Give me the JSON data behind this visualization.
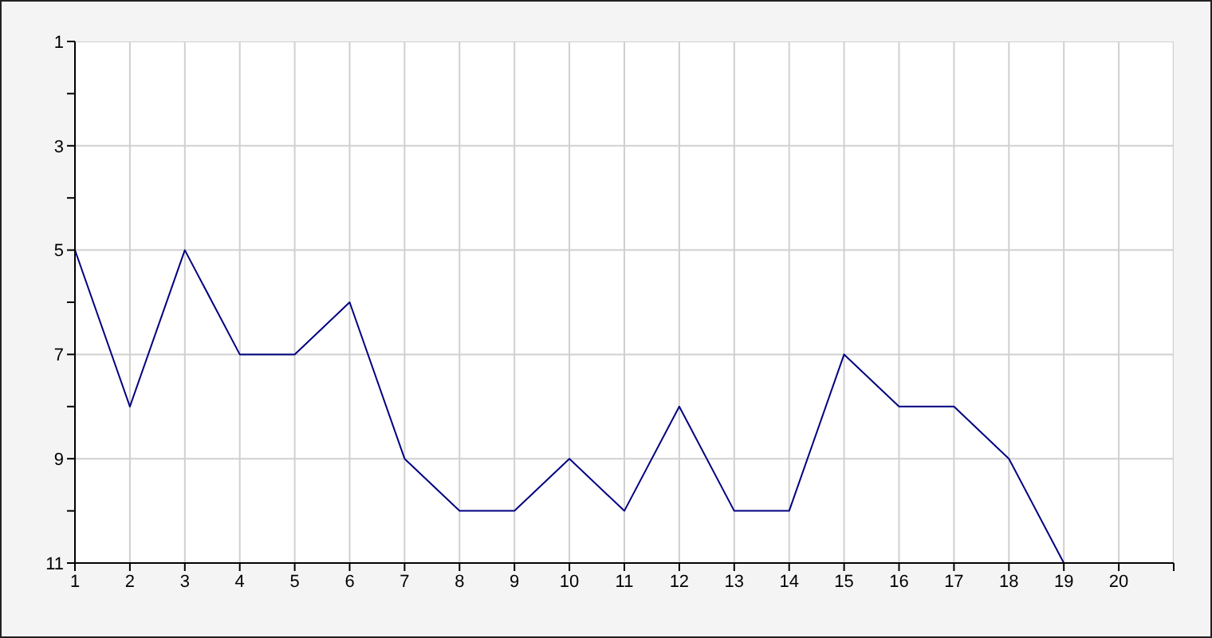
{
  "chart_data": {
    "type": "line",
    "x": [
      1,
      2,
      3,
      4,
      5,
      6,
      7,
      8,
      9,
      10,
      11,
      12,
      13,
      14,
      15,
      16,
      17,
      18,
      19,
      20
    ],
    "series": [
      {
        "color": "#000080",
        "values": [
          5,
          8,
          5,
          7,
          7,
          6,
          9,
          10,
          10,
          9,
          10,
          8,
          10,
          10,
          7,
          8,
          8,
          9,
          11,
          11
        ]
      }
    ],
    "xlim": [
      1,
      21
    ],
    "xticks": [
      1,
      2,
      3,
      4,
      5,
      6,
      7,
      8,
      9,
      10,
      11,
      12,
      13,
      14,
      15,
      16,
      17,
      18,
      19,
      20,
      {
        "value": 21,
        "label": null
      }
    ],
    "ylim": [
      11,
      1
    ],
    "yticks": [
      1,
      {
        "value": 2,
        "label": null
      },
      3,
      {
        "value": 4,
        "label": null
      },
      5,
      {
        "value": 6,
        "label": null
      },
      7,
      {
        "value": 8,
        "label": null
      },
      9,
      {
        "value": 10,
        "label": null
      },
      11
    ],
    "grid": true,
    "marker": "none",
    "line_style": "solid"
  }
}
